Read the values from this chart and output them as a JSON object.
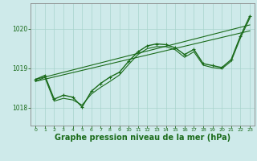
{
  "background_color": "#ceeaea",
  "grid_color": "#a8d4cc",
  "line_color": "#1a6b1a",
  "xlabel": "Graphe pression niveau de la mer (hPa)",
  "xlabel_fontsize": 7,
  "ylim": [
    1017.55,
    1020.65
  ],
  "xlim": [
    -0.5,
    23.5
  ],
  "yticks": [
    1018,
    1019,
    1020
  ],
  "xticks": [
    0,
    1,
    2,
    3,
    4,
    5,
    6,
    7,
    8,
    9,
    10,
    11,
    12,
    13,
    14,
    15,
    16,
    17,
    18,
    19,
    20,
    21,
    22,
    23
  ],
  "series1_x": [
    0,
    1,
    2,
    3,
    4,
    5,
    6,
    7,
    8,
    9,
    10,
    11,
    12,
    13,
    14,
    15,
    16,
    17,
    18,
    19,
    20,
    21,
    22,
    23
  ],
  "series1_y": [
    1018.72,
    1018.82,
    1018.22,
    1018.32,
    1018.27,
    1018.02,
    1018.42,
    1018.62,
    1018.78,
    1018.9,
    1019.18,
    1019.42,
    1019.57,
    1019.62,
    1019.6,
    1019.52,
    1019.35,
    1019.48,
    1019.12,
    1019.07,
    1019.02,
    1019.22,
    1019.82,
    1020.32
  ],
  "series2_x": [
    0,
    1,
    2,
    3,
    4,
    5,
    6,
    7,
    8,
    9,
    10,
    11,
    12,
    13,
    14,
    15,
    16,
    17,
    18,
    19,
    20,
    21,
    22,
    23
  ],
  "series2_y": [
    1018.67,
    1018.77,
    1018.17,
    1018.24,
    1018.2,
    1018.07,
    1018.35,
    1018.52,
    1018.67,
    1018.83,
    1019.1,
    1019.35,
    1019.5,
    1019.55,
    1019.55,
    1019.47,
    1019.28,
    1019.42,
    1019.08,
    1019.02,
    1018.99,
    1019.18,
    1019.77,
    1020.27
  ],
  "line3_x": [
    0,
    23
  ],
  "line3_y": [
    1018.67,
    1019.95
  ],
  "line4_x": [
    0,
    23
  ],
  "line4_y": [
    1018.72,
    1020.1
  ]
}
